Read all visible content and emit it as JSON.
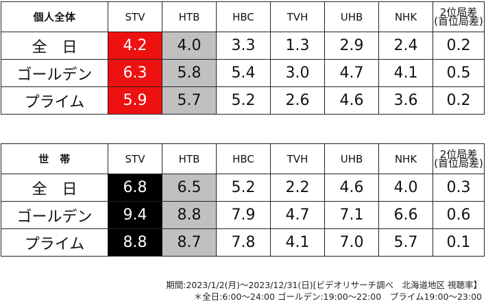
{
  "colors": {
    "top_highlight_t1": "#ee1111",
    "top_highlight_t2": "#000000",
    "second_highlight": "#c0c0c0"
  },
  "columns": [
    "STV",
    "HTB",
    "HBC",
    "TVH",
    "UHB",
    "NHK"
  ],
  "diff_header": [
    "2位局差",
    "(首位局差)"
  ],
  "tables": [
    {
      "title": "個人全体",
      "rows": [
        {
          "label": "全　日",
          "values": [
            "4.2",
            "4.0",
            "3.3",
            "1.3",
            "2.9",
            "2.4"
          ],
          "diff": "0.2"
        },
        {
          "label": "ゴールデン",
          "values": [
            "6.3",
            "5.8",
            "5.4",
            "3.0",
            "4.7",
            "4.1"
          ],
          "diff": "0.5"
        },
        {
          "label": "プライム",
          "values": [
            "5.9",
            "5.7",
            "5.2",
            "2.6",
            "4.6",
            "3.6"
          ],
          "diff": "0.2"
        }
      ]
    },
    {
      "title": "世　帯",
      "rows": [
        {
          "label": "全　日",
          "values": [
            "6.8",
            "6.5",
            "5.2",
            "2.2",
            "4.6",
            "4.0"
          ],
          "diff": "0.3"
        },
        {
          "label": "ゴールデン",
          "values": [
            "9.4",
            "8.8",
            "7.9",
            "4.7",
            "7.1",
            "6.6"
          ],
          "diff": "0.6"
        },
        {
          "label": "プライム",
          "values": [
            "8.8",
            "8.7",
            "7.8",
            "4.1",
            "7.0",
            "5.7"
          ],
          "diff": "0.1"
        }
      ]
    }
  ],
  "notes": [
    "期間:2023/1/2(月)〜2023/12/31(日)[ビデオリサーチ調べ　北海道地区 視聴率】",
    "＊全日:6:00〜24:00 ゴールデン:19:00〜22:00　プライム19:00〜23:00"
  ]
}
